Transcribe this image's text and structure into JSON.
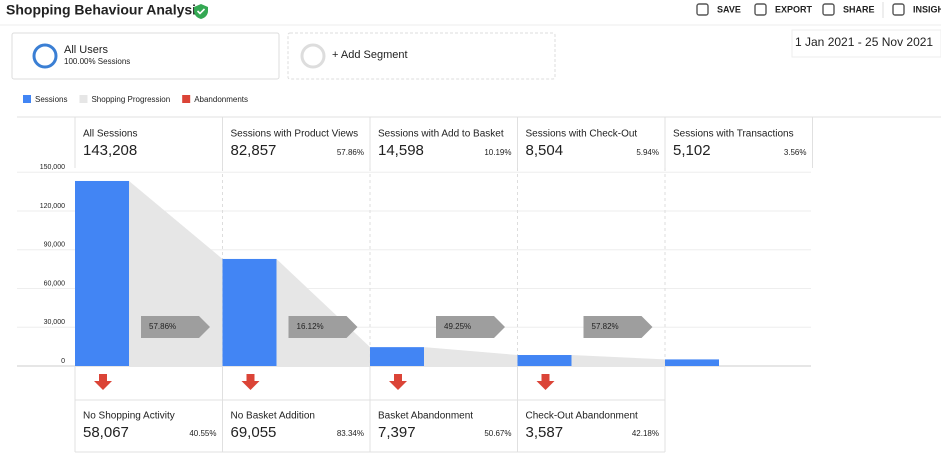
{
  "header": {
    "title": "Shopping Behaviour Analysis",
    "actions": [
      "SAVE",
      "EXPORT",
      "SHARE",
      "INSIGH"
    ]
  },
  "segments": [
    {
      "name": "All Users",
      "detail": "100.00% Sessions"
    },
    {
      "name": "+ Add Segment"
    }
  ],
  "date_range": "1 Jan 2021 - 25 Nov 2021",
  "chart_data": {
    "type": "funnel",
    "legend": [
      {
        "name": "Sessions",
        "color": "#4285f4"
      },
      {
        "name": "Shopping Progression",
        "color": "#e6e6e6"
      },
      {
        "name": "Abandonments",
        "color": "#db4437"
      }
    ],
    "categories": [
      "All Sessions",
      "Sessions with Product Views",
      "Sessions with Add to Basket",
      "Sessions with Check-Out",
      "Sessions with Transactions"
    ],
    "values": [
      143208,
      82857,
      14598,
      8504,
      5102
    ],
    "value_labels": [
      "143,208",
      "82,857",
      "14,598",
      "8,504",
      "5,102"
    ],
    "shares": [
      null,
      57.86,
      10.19,
      5.94,
      3.56
    ],
    "share_labels": [
      null,
      "57.86%",
      "10.19%",
      "5.94%",
      "3.56%"
    ],
    "progression": {
      "values": [
        57.86,
        16.12,
        49.25,
        57.82
      ],
      "labels": [
        "57.86%",
        "16.12%",
        "49.25%",
        "57.82%"
      ]
    },
    "abandonments": {
      "categories": [
        "No Shopping Activity",
        "No Basket Addition",
        "Basket Abandonment",
        "Check-Out Abandonment"
      ],
      "values": [
        58067,
        69055,
        7397,
        3587
      ],
      "value_labels": [
        "58,067",
        "69,055",
        "7,397",
        "3,587"
      ],
      "shares": [
        40.55,
        83.34,
        50.67,
        42.18
      ],
      "share_labels": [
        "40.55%",
        "83.34%",
        "50.67%",
        "42.18%"
      ]
    },
    "ylim": [
      0,
      150000
    ],
    "yticks": [
      0,
      {
        "value": 30000,
        "label": "30,000"
      },
      {
        "value": 60000,
        "label": "60,000"
      },
      {
        "value": 90000,
        "label": "90,000"
      },
      {
        "value": 120000,
        "label": "120,000"
      },
      {
        "value": 150000,
        "label": "150,000"
      }
    ],
    "grid": true
  }
}
